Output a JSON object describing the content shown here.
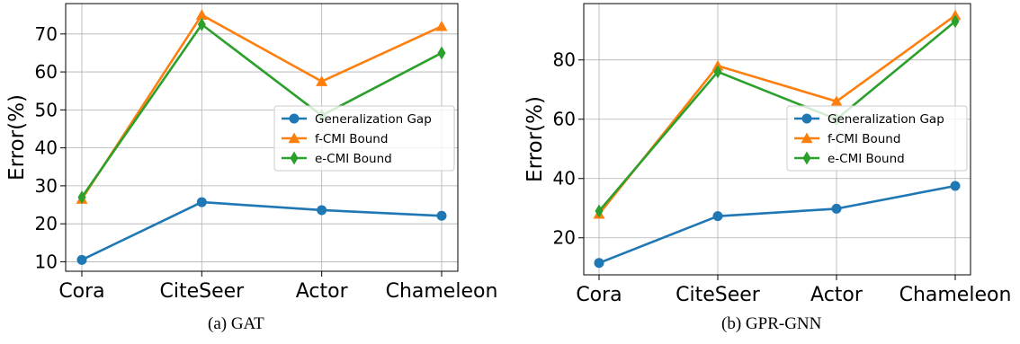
{
  "chart_data": [
    {
      "type": "line",
      "caption": "(a) GAT",
      "ylabel": "Error(%)",
      "categories": [
        "Cora",
        "CiteSeer",
        "Actor",
        "Chameleon"
      ],
      "ylim": [
        7.5,
        78
      ],
      "yticks": [
        10,
        20,
        30,
        40,
        50,
        60,
        70
      ],
      "grid": true,
      "legend_position": "center-right",
      "series": [
        {
          "name": "Generalization Gap",
          "color": "#1f77b4",
          "marker": "circle",
          "values": [
            10.5,
            25.7,
            23.6,
            22.1
          ]
        },
        {
          "name": "f-CMI Bound",
          "color": "#ff7f0e",
          "marker": "triangle-up",
          "values": [
            26.5,
            75.0,
            57.5,
            72.0
          ]
        },
        {
          "name": "e-CMI Bound",
          "color": "#2ca02c",
          "marker": "thin-diamond",
          "values": [
            27.0,
            72.5,
            48.5,
            65.0
          ]
        }
      ]
    },
    {
      "type": "line",
      "caption": "(b) GPR-GNN",
      "ylabel": "Error(%)",
      "categories": [
        "Cora",
        "CiteSeer",
        "Actor",
        "Chameleon"
      ],
      "ylim": [
        7.5,
        99
      ],
      "yticks": [
        20,
        40,
        60,
        80
      ],
      "grid": true,
      "legend_position": "center-right",
      "series": [
        {
          "name": "Generalization Gap",
          "color": "#1f77b4",
          "marker": "circle",
          "values": [
            11.5,
            27.3,
            29.8,
            37.5
          ]
        },
        {
          "name": "f-CMI Bound",
          "color": "#ff7f0e",
          "marker": "triangle-up",
          "values": [
            28.0,
            78.0,
            66.0,
            95.0
          ]
        },
        {
          "name": "e-CMI Bound",
          "color": "#2ca02c",
          "marker": "thin-diamond",
          "values": [
            29.0,
            76.0,
            60.0,
            93.0
          ]
        }
      ]
    }
  ]
}
